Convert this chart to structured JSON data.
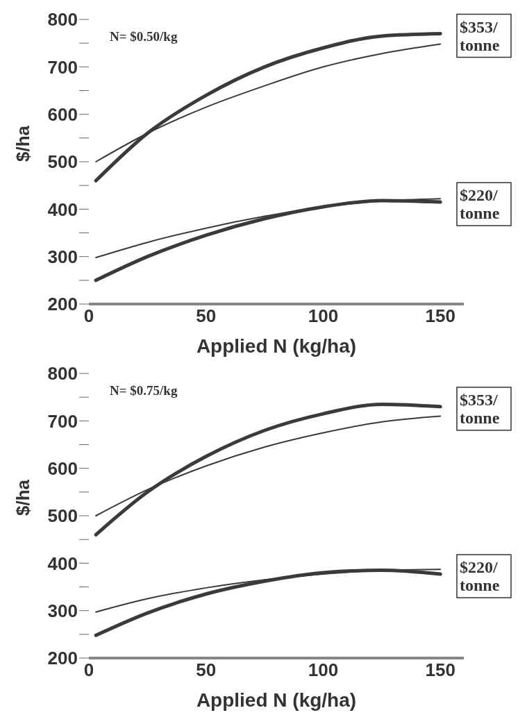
{
  "chart_data": [
    {
      "type": "line",
      "xlabel": "Applied N  (kg/ha)",
      "ylabel": "$/ha",
      "x": [
        3,
        25,
        50,
        75,
        100,
        125,
        150
      ],
      "xlim": [
        0,
        160
      ],
      "xticks": [
        0,
        50,
        100,
        150
      ],
      "ylim": [
        200,
        800
      ],
      "yticks": [
        200,
        {
          "value": 250,
          "label": null
        },
        300,
        {
          "value": 350,
          "label": null
        },
        400,
        {
          "value": 450,
          "label": null
        },
        500,
        {
          "value": 550,
          "label": null
        },
        600,
        {
          "value": 650,
          "label": null
        },
        700,
        {
          "value": 750,
          "label": null
        },
        800
      ],
      "legend": false,
      "marker": "none",
      "line_style": "solid",
      "series": [
        {
          "color": "#3a3a3a",
          "values": [
            460,
            560,
            640,
            700,
            740,
            765,
            770
          ]
        },
        {
          "color": "#3a3a3a",
          "values": [
            500,
            560,
            615,
            660,
            700,
            728,
            748
          ]
        },
        {
          "color": "#3a3a3a",
          "values": [
            250,
            300,
            345,
            380,
            405,
            418,
            415
          ]
        },
        {
          "color": "#3a3a3a",
          "values": [
            298,
            330,
            360,
            385,
            405,
            417,
            422
          ]
        }
      ],
      "annotations": [
        "N= $0.50/kg",
        "$353/ tonne",
        "$220/ tonne"
      ]
    },
    {
      "type": "line",
      "xlabel": "Applied N  (kg/ha)",
      "ylabel": "$/ha",
      "x": [
        3,
        25,
        50,
        75,
        100,
        125,
        150
      ],
      "xlim": [
        0,
        160
      ],
      "xticks": [
        0,
        50,
        100,
        150
      ],
      "ylim": [
        200,
        800
      ],
      "yticks": [
        200,
        {
          "value": 250,
          "label": null
        },
        300,
        {
          "value": 350,
          "label": null
        },
        400,
        {
          "value": 450,
          "label": null
        },
        500,
        {
          "value": 550,
          "label": null
        },
        600,
        {
          "value": 650,
          "label": null
        },
        700,
        {
          "value": 750,
          "label": null
        },
        800
      ],
      "legend": false,
      "marker": "none",
      "line_style": "solid",
      "series": [
        {
          "color": "#3a3a3a",
          "values": [
            460,
            550,
            625,
            680,
            715,
            735,
            730
          ]
        },
        {
          "color": "#3a3a3a",
          "values": [
            500,
            555,
            605,
            645,
            675,
            698,
            710
          ]
        },
        {
          "color": "#3a3a3a",
          "values": [
            248,
            295,
            335,
            362,
            380,
            385,
            377
          ]
        },
        {
          "color": "#3a3a3a",
          "values": [
            297,
            325,
            348,
            365,
            377,
            385,
            387
          ]
        }
      ],
      "annotations": [
        "N= $0.75/kg",
        "$353/ tonne",
        "$220/ tonne"
      ]
    }
  ]
}
